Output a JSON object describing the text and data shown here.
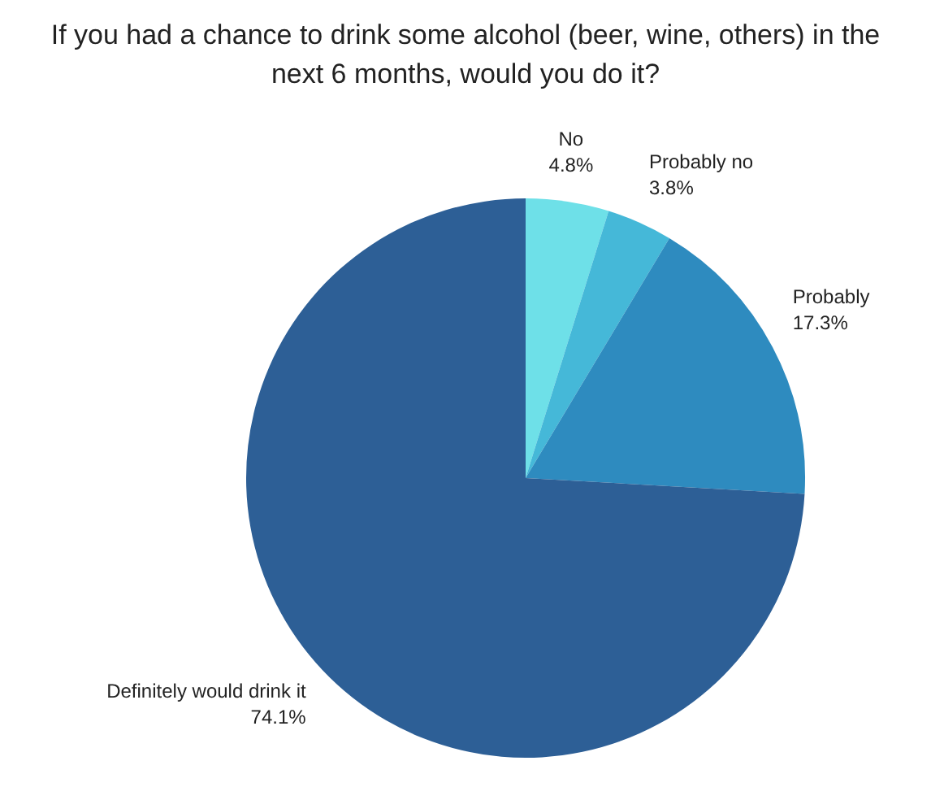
{
  "chart_data": {
    "type": "pie",
    "title": "If you had a chance to drink some alcohol (beer, wine, others) in the next 6 months, would you do it?",
    "categories": [
      "No",
      "Probably no",
      "Probably",
      "Definitely would drink it"
    ],
    "values": [
      4.8,
      3.8,
      17.3,
      74.1
    ],
    "value_labels": [
      "4.8%",
      "3.8%",
      "17.3%",
      "74.1%"
    ],
    "colors": [
      "#6ee0e8",
      "#45b8d8",
      "#2e8bbf",
      "#2d5f96"
    ],
    "legend": false
  }
}
